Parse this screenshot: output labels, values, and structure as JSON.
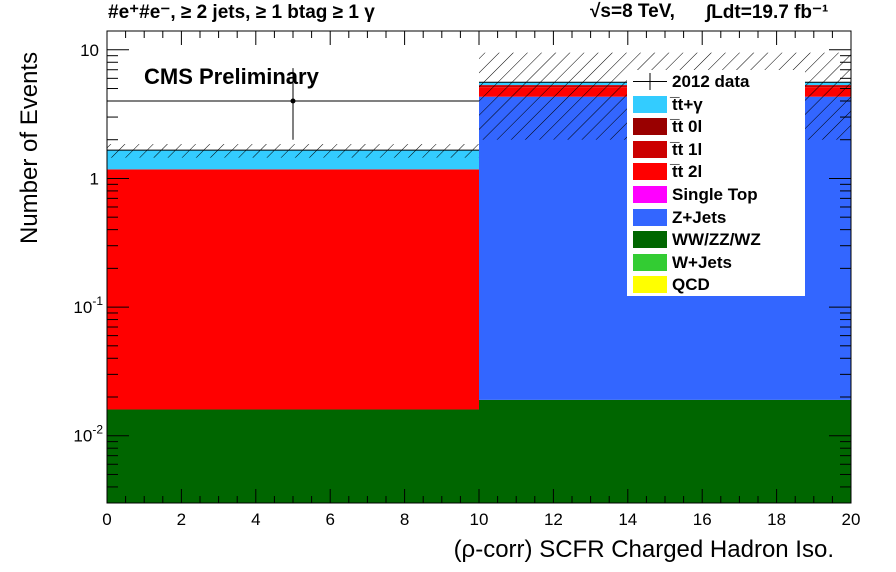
{
  "header": {
    "left": "#e⁺#e⁻, ≥ 2 jets, ≥ 1 btag ≥ 1 γ",
    "energy": "√s=8 TeV,",
    "lumi": "∫Ldt=19.7 fb⁻¹"
  },
  "cms_label": "CMS Preliminary",
  "colors": {
    "ttgamma": "#33ccff",
    "tt0l": "#990000",
    "tt1l": "#cc0000",
    "tt2l": "#ff0000",
    "singletop": "#ff00ff",
    "zjets": "#3366ff",
    "diboson": "#006600",
    "wjets": "#33cc33",
    "qcd": "#ffff00"
  },
  "chart_data": {
    "type": "bar",
    "stacked": true,
    "log_y": true,
    "xlabel": "(ρ-corr) SCFR Charged Hadron Iso.",
    "ylabel": "Number of Events",
    "xlim": [
      0,
      20
    ],
    "ylim": [
      0.003,
      14
    ],
    "x_ticks": [
      "0",
      "2",
      "4",
      "6",
      "8",
      "10",
      "12",
      "14",
      "16",
      "18",
      "20"
    ],
    "y_ticks": [
      {
        "value": 0.01,
        "base": "10",
        "exp": "-2"
      },
      {
        "value": 0.1,
        "base": "10",
        "exp": "-1"
      },
      {
        "value": 1,
        "base": "1",
        "exp": ""
      },
      {
        "value": 10,
        "base": "10",
        "exp": ""
      }
    ],
    "bins": [
      [
        0,
        10
      ],
      [
        10,
        20
      ]
    ],
    "series": [
      {
        "name": "WW/ZZ/WZ",
        "key": "diboson",
        "values": [
          0.016,
          0.019
        ]
      },
      {
        "name": "Z+Jets",
        "key": "zjets",
        "values": [
          0.0,
          4.3
        ]
      },
      {
        "name": "t̅t 2l",
        "key": "tt2l",
        "values": [
          1.16,
          0.8
        ]
      },
      {
        "name": "t̅t 1l",
        "key": "tt1l",
        "values": [
          0.0,
          0.2
        ]
      },
      {
        "name": "t̅t+γ",
        "key": "ttgamma",
        "values": [
          0.48,
          0.3
        ]
      }
    ],
    "stack_total": [
      1.66,
      5.6
    ],
    "uncertainty_band": [
      [
        1.45,
        1.85
      ],
      [
        2.0,
        9.5
      ]
    ],
    "data": {
      "name": "2012 data",
      "x": [
        5
      ],
      "y": [
        4
      ],
      "yerr_low": [
        2.0
      ],
      "yerr_high": [
        3.2
      ]
    },
    "legend": [
      {
        "label": "2012 data",
        "key": "data"
      },
      {
        "label": "t̅t+γ",
        "key": "ttgamma"
      },
      {
        "label": "t̅t 0l",
        "key": "tt0l"
      },
      {
        "label": "t̅t 1l",
        "key": "tt1l"
      },
      {
        "label": "t̅t 2l",
        "key": "tt2l"
      },
      {
        "label": "Single Top",
        "key": "singletop"
      },
      {
        "label": "Z+Jets",
        "key": "zjets"
      },
      {
        "label": "WW/ZZ/WZ",
        "key": "diboson"
      },
      {
        "label": "W+Jets",
        "key": "wjets"
      },
      {
        "label": "QCD",
        "key": "qcd"
      }
    ],
    "legend_position": "top-right"
  }
}
